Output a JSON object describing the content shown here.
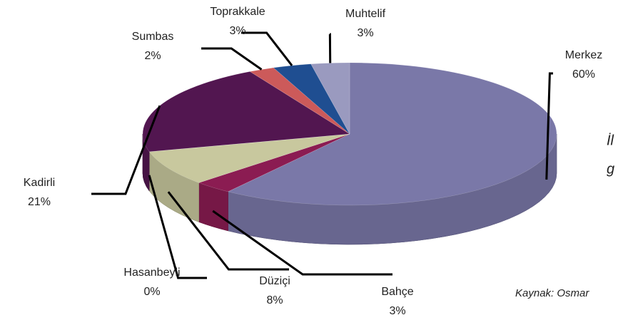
{
  "chart_data": {
    "type": "pie3d",
    "categories": [
      "Merkez",
      "Bahçe",
      "Düziçi",
      "Hasanbeyli",
      "Kadirli",
      "Sumbas",
      "Toprakkale",
      "Muhtelif"
    ],
    "values": [
      60,
      3,
      8,
      0,
      21,
      2,
      3,
      3
    ],
    "value_labels": [
      "60%",
      "3%",
      "8%",
      "0%",
      "21%",
      "2%",
      "3%",
      "3%"
    ],
    "colors": [
      "#7a78a8",
      "#8b1c52",
      "#c8c89e",
      "#9fc3cc",
      "#521650",
      "#cc5a5a",
      "#1f4e91",
      "#9a9abf"
    ],
    "annotations": [
      "İl",
      "g",
      "Kaynak: Osmar"
    ]
  }
}
